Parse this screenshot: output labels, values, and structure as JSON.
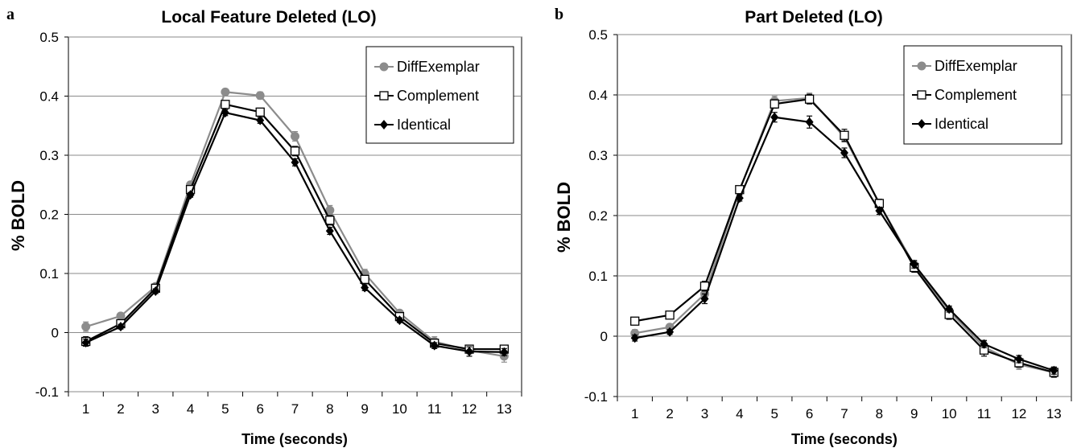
{
  "chart_data": [
    {
      "panel_label": "a",
      "type": "line",
      "title": "Local Feature Deleted (LO)",
      "xlabel": "Time (seconds)",
      "ylabel": "% BOLD",
      "ylim": [
        -0.1,
        0.5
      ],
      "yticks": [
        "0.5",
        "0.4",
        "0.3",
        "0.2",
        "0.1",
        "0",
        "-0.1"
      ],
      "ytick_values": [
        0.5,
        0.4,
        0.3,
        0.2,
        0.1,
        0,
        -0.1
      ],
      "x": [
        1,
        2,
        3,
        4,
        5,
        6,
        7,
        8,
        9,
        10,
        11,
        12,
        13
      ],
      "xticks": [
        "1",
        "2",
        "3",
        "4",
        "5",
        "6",
        "7",
        "8",
        "9",
        "10",
        "11",
        "12",
        "13"
      ],
      "grid": "horizontal",
      "legend_position": "top-right",
      "series": [
        {
          "name": "DiffExemplar",
          "color": "#8c8c8c",
          "marker": "circle",
          "values": [
            0.01,
            0.028,
            0.078,
            0.25,
            0.407,
            0.401,
            0.332,
            0.207,
            0.1,
            0.033,
            -0.015,
            -0.03,
            -0.04
          ],
          "errors": [
            0.008,
            0.004,
            0.004,
            0.005,
            0.005,
            0.006,
            0.008,
            0.008,
            0.007,
            0.005,
            0.008,
            0.006,
            0.01
          ]
        },
        {
          "name": "Complement",
          "color": "#000000",
          "marker": "square-open",
          "values": [
            -0.015,
            0.015,
            0.075,
            0.242,
            0.386,
            0.373,
            0.307,
            0.19,
            0.09,
            0.027,
            -0.018,
            -0.028,
            -0.028
          ],
          "errors": [
            0.008,
            0.005,
            0.004,
            0.005,
            0.006,
            0.006,
            0.008,
            0.008,
            0.006,
            0.005,
            0.006,
            0.005,
            0.006
          ]
        },
        {
          "name": "Identical",
          "color": "#000000",
          "marker": "diamond",
          "values": [
            -0.017,
            0.01,
            0.07,
            0.233,
            0.372,
            0.359,
            0.288,
            0.172,
            0.076,
            0.021,
            -0.022,
            -0.032,
            -0.033
          ],
          "errors": [
            0.006,
            0.004,
            0.004,
            0.004,
            0.005,
            0.005,
            0.006,
            0.006,
            0.005,
            0.004,
            0.005,
            0.008,
            0.006
          ]
        }
      ]
    },
    {
      "panel_label": "b",
      "type": "line",
      "title": "Part Deleted (LO)",
      "xlabel": "Time (seconds)",
      "ylabel": "% BOLD",
      "ylim": [
        -0.1,
        0.5
      ],
      "yticks": [
        "0.5",
        "0.4",
        "0.3",
        "0.2",
        "0.1",
        "0",
        "-0.1"
      ],
      "ytick_values": [
        0.5,
        0.4,
        0.3,
        0.2,
        0.1,
        0,
        -0.1
      ],
      "x": [
        1,
        2,
        3,
        4,
        5,
        6,
        7,
        8,
        9,
        10,
        11,
        12,
        13
      ],
      "xticks": [
        "1",
        "2",
        "3",
        "4",
        "5",
        "6",
        "7",
        "8",
        "9",
        "10",
        "11",
        "12",
        "13"
      ],
      "grid": "horizontal",
      "legend_position": "top-right",
      "series": [
        {
          "name": "DiffExemplar",
          "color": "#8c8c8c",
          "marker": "circle",
          "values": [
            0.005,
            0.015,
            0.07,
            0.242,
            0.39,
            0.395,
            0.33,
            0.22,
            0.118,
            0.042,
            -0.018,
            -0.047,
            -0.06
          ],
          "errors": [
            0.006,
            0.005,
            0.008,
            0.005,
            0.008,
            0.008,
            0.008,
            0.007,
            0.008,
            0.006,
            0.01,
            0.008,
            0.008
          ]
        },
        {
          "name": "Complement",
          "color": "#000000",
          "marker": "square-open",
          "values": [
            0.025,
            0.035,
            0.083,
            0.243,
            0.385,
            0.393,
            0.333,
            0.22,
            0.114,
            0.036,
            -0.023,
            -0.044,
            -0.06
          ],
          "errors": [
            0.005,
            0.006,
            0.008,
            0.005,
            0.007,
            0.008,
            0.01,
            0.007,
            0.008,
            0.008,
            0.01,
            0.007,
            0.008
          ]
        },
        {
          "name": "Identical",
          "color": "#000000",
          "marker": "diamond",
          "values": [
            -0.003,
            0.007,
            0.062,
            0.229,
            0.363,
            0.355,
            0.304,
            0.208,
            0.119,
            0.045,
            -0.013,
            -0.038,
            -0.057
          ],
          "errors": [
            0.005,
            0.004,
            0.008,
            0.005,
            0.008,
            0.01,
            0.008,
            0.006,
            0.006,
            0.005,
            0.006,
            0.006,
            0.006
          ]
        }
      ]
    }
  ]
}
